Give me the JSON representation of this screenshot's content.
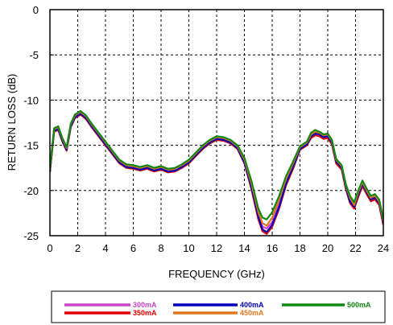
{
  "chart_data": {
    "type": "line",
    "xlabel": "FREQUENCY (GHz)",
    "ylabel": "RETURN LOSS (dB)",
    "xlim": [
      0,
      24
    ],
    "ylim": [
      -25,
      0
    ],
    "x_ticks": [
      "0",
      "2",
      "4",
      "6",
      "8",
      "10",
      "12",
      "14",
      "16",
      "18",
      "20",
      "22",
      "24"
    ],
    "y_ticks": [
      "0",
      "-5",
      "-10",
      "-15",
      "-20",
      "-25"
    ],
    "grid": true,
    "legend_position": "bottom",
    "x": [
      0,
      0.3,
      0.6,
      0.9,
      1.2,
      1.5,
      1.8,
      2.2,
      2.6,
      3.0,
      3.5,
      4.0,
      4.5,
      5.0,
      5.5,
      6.0,
      6.5,
      7.0,
      7.5,
      8.0,
      8.5,
      9.0,
      9.5,
      10.0,
      10.5,
      11.0,
      11.5,
      12.0,
      12.5,
      13.0,
      13.5,
      14.0,
      14.5,
      15.0,
      15.3,
      15.6,
      16.0,
      16.5,
      17.0,
      17.5,
      18.0,
      18.5,
      18.8,
      19.1,
      19.4,
      19.7,
      20.0,
      20.3,
      20.6,
      21.0,
      21.3,
      21.6,
      21.9,
      22.2,
      22.5,
      22.8,
      23.1,
      23.4,
      23.7,
      24.0
    ],
    "series": [
      {
        "name": "300mA",
        "color": "#cc44cc",
        "values": [
          -17.8,
          -13.3,
          -13.1,
          -14.4,
          -15.4,
          -12.8,
          -11.8,
          -11.4,
          -11.9,
          -12.8,
          -13.8,
          -14.8,
          -15.8,
          -16.8,
          -17.3,
          -17.4,
          -17.6,
          -17.4,
          -17.7,
          -17.5,
          -17.8,
          -17.7,
          -17.3,
          -16.8,
          -16.0,
          -15.2,
          -14.6,
          -14.2,
          -14.3,
          -14.6,
          -15.2,
          -16.8,
          -19.5,
          -22.8,
          -24.0,
          -24.2,
          -23.5,
          -21.5,
          -19.0,
          -17.3,
          -15.3,
          -14.8,
          -13.9,
          -13.6,
          -13.7,
          -14.0,
          -13.9,
          -14.6,
          -16.7,
          -17.4,
          -19.5,
          -21.0,
          -21.6,
          -20.4,
          -19.2,
          -20.1,
          -20.9,
          -20.7,
          -21.3,
          -23.5
        ]
      },
      {
        "name": "350mA",
        "color": "#e00000",
        "values": [
          -18.0,
          -13.5,
          -13.3,
          -14.6,
          -15.6,
          -13.0,
          -12.0,
          -11.6,
          -12.1,
          -13.0,
          -14.0,
          -15.0,
          -16.0,
          -17.0,
          -17.5,
          -17.6,
          -17.8,
          -17.6,
          -17.9,
          -17.7,
          -18.0,
          -17.9,
          -17.5,
          -17.0,
          -16.2,
          -15.4,
          -14.8,
          -14.4,
          -14.5,
          -14.8,
          -15.4,
          -17.0,
          -19.8,
          -23.2,
          -24.5,
          -24.8,
          -24.0,
          -22.0,
          -19.4,
          -17.6,
          -15.5,
          -15.0,
          -14.2,
          -13.9,
          -14.0,
          -14.3,
          -14.2,
          -14.9,
          -17.0,
          -17.7,
          -19.8,
          -21.4,
          -22.0,
          -20.7,
          -19.5,
          -20.4,
          -21.2,
          -21.0,
          -21.6,
          -23.8
        ]
      },
      {
        "name": "400mA",
        "color": "#0000bb",
        "values": [
          -17.9,
          -13.4,
          -13.2,
          -14.5,
          -15.5,
          -12.9,
          -11.9,
          -11.5,
          -12.0,
          -12.9,
          -13.9,
          -14.9,
          -15.9,
          -16.9,
          -17.4,
          -17.5,
          -17.7,
          -17.5,
          -17.8,
          -17.6,
          -17.9,
          -17.8,
          -17.4,
          -16.9,
          -16.1,
          -15.3,
          -14.7,
          -14.3,
          -14.4,
          -14.7,
          -15.3,
          -16.9,
          -19.6,
          -22.9,
          -24.3,
          -24.6,
          -23.8,
          -21.8,
          -19.2,
          -17.4,
          -15.4,
          -14.9,
          -14.0,
          -13.7,
          -13.8,
          -14.1,
          -14.0,
          -14.7,
          -16.8,
          -17.5,
          -19.6,
          -21.2,
          -21.8,
          -20.5,
          -19.3,
          -20.2,
          -21.0,
          -20.8,
          -21.4,
          -23.6
        ]
      },
      {
        "name": "450mA",
        "color": "#e07820",
        "values": [
          -17.7,
          -13.2,
          -13.0,
          -14.3,
          -15.3,
          -12.7,
          -11.7,
          -11.3,
          -11.8,
          -12.7,
          -13.7,
          -14.7,
          -15.7,
          -16.7,
          -17.2,
          -17.3,
          -17.5,
          -17.3,
          -17.6,
          -17.4,
          -17.7,
          -17.6,
          -17.2,
          -16.7,
          -15.9,
          -15.1,
          -14.5,
          -14.1,
          -14.2,
          -14.5,
          -15.1,
          -16.6,
          -19.2,
          -22.4,
          -23.6,
          -23.9,
          -23.0,
          -21.0,
          -18.7,
          -17.0,
          -15.2,
          -14.7,
          -13.8,
          -13.5,
          -13.6,
          -13.9,
          -13.8,
          -14.5,
          -16.6,
          -17.3,
          -19.4,
          -20.8,
          -21.6,
          -20.2,
          -19.1,
          -20.0,
          -20.8,
          -20.6,
          -21.2,
          -23.4
        ]
      },
      {
        "name": "500mA",
        "color": "#118811",
        "values": [
          -17.6,
          -13.1,
          -12.9,
          -14.2,
          -15.2,
          -12.6,
          -11.6,
          -11.2,
          -11.7,
          -12.6,
          -13.6,
          -14.6,
          -15.6,
          -16.6,
          -17.1,
          -17.2,
          -17.4,
          -17.2,
          -17.5,
          -17.3,
          -17.6,
          -17.5,
          -17.1,
          -16.6,
          -15.8,
          -15.0,
          -14.4,
          -14.0,
          -14.1,
          -14.4,
          -15.0,
          -16.4,
          -18.9,
          -22.0,
          -23.0,
          -23.2,
          -22.4,
          -20.6,
          -18.4,
          -16.8,
          -15.1,
          -14.6,
          -13.6,
          -13.3,
          -13.5,
          -13.8,
          -13.7,
          -14.4,
          -16.5,
          -17.2,
          -19.3,
          -20.6,
          -21.3,
          -20.0,
          -18.9,
          -19.8,
          -20.6,
          -20.4,
          -21.0,
          -23.2
        ]
      }
    ]
  }
}
